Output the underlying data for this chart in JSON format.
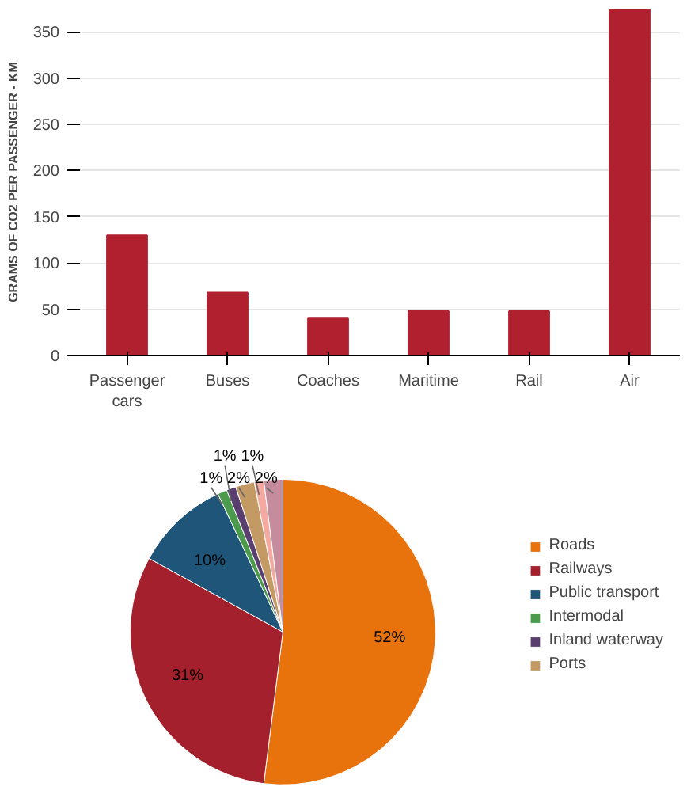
{
  "chart_data": [
    {
      "type": "bar",
      "ylabel": "GRAMS OF CO2 PER PASSENGER - KM",
      "categories": [
        "Passenger cars",
        "Buses",
        "Coaches",
        "Maritime",
        "Rail",
        "Air"
      ],
      "values": [
        130,
        68,
        40,
        48,
        48,
        375
      ],
      "color": "#b0202e",
      "ylim": [
        0,
        375
      ],
      "yticks": [
        0,
        50,
        100,
        150,
        200,
        250,
        300,
        350
      ],
      "grid": "y"
    },
    {
      "type": "pie",
      "categories": [
        "Roads",
        "Railways",
        "Public transport",
        "Intermodal",
        "Inland waterway",
        "Ports",
        null,
        null
      ],
      "values": [
        52,
        31,
        10,
        1,
        1,
        2,
        1,
        2
      ],
      "colors": [
        "#e8720c",
        "#a3202c",
        "#1f5578",
        "#4c9a4c",
        "#5a3e70",
        "#c49a64",
        "#f4aaa0",
        "#c48c9c"
      ],
      "data_labels": true,
      "value_labels": [
        "52%",
        "31%",
        "10%",
        "1%",
        "1%",
        "2%",
        "1%",
        "2%"
      ],
      "legend": "right"
    }
  ]
}
